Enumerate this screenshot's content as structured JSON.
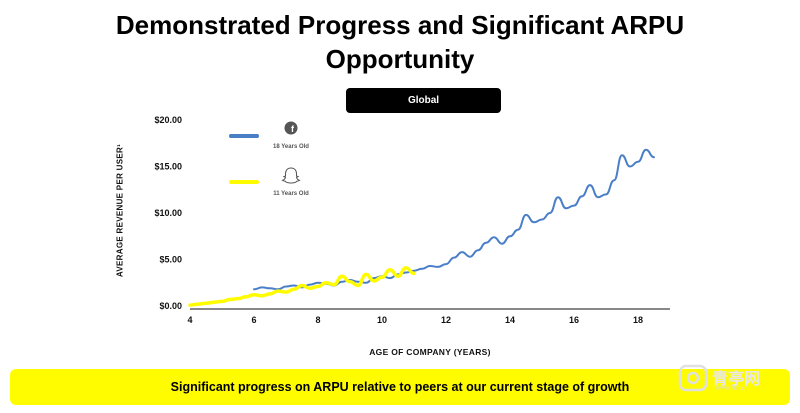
{
  "page": {
    "title_line1": "Demonstrated Progress and Significant ARPU",
    "title_line2": "Opportunity",
    "region_pill": "Global",
    "banner_text": "Significant progress on ARPU relative to peers at our current stage of growth",
    "watermark_main": "青亭网",
    "watermark_sub": "www.7tin.cn"
  },
  "chart_data": {
    "type": "line",
    "title": "",
    "xlabel": "AGE OF COMPANY (YEARS)",
    "ylabel": "AVERAGE REVENUE PER USER¹",
    "xlim": [
      4,
      19
    ],
    "ylim": [
      0,
      20
    ],
    "x_ticks": [
      4,
      6,
      8,
      10,
      12,
      14,
      16,
      18
    ],
    "x_tick_labels": [
      "4",
      "6",
      "8",
      "10",
      "12",
      "14",
      "16",
      "18"
    ],
    "y_ticks": [
      0,
      5,
      10,
      15,
      20
    ],
    "y_tick_labels": [
      "$0.00",
      "$5.00",
      "$10.00",
      "$15.00",
      "$20.00"
    ],
    "grid": false,
    "legend_position": "top-left",
    "series": [
      {
        "name": "18 Years Old",
        "icon": "facebook-icon",
        "color": "#4a7fc8",
        "x": [
          6.0,
          6.25,
          6.5,
          6.75,
          7.0,
          7.25,
          7.5,
          7.75,
          8.0,
          8.25,
          8.5,
          8.75,
          9.0,
          9.25,
          9.5,
          9.75,
          10.0,
          10.25,
          10.5,
          10.75,
          11.0,
          11.25,
          11.5,
          11.75,
          12.0,
          12.25,
          12.5,
          12.75,
          13.0,
          13.25,
          13.5,
          13.75,
          14.0,
          14.25,
          14.5,
          14.75,
          15.0,
          15.25,
          15.5,
          15.75,
          16.0,
          16.25,
          16.5,
          16.75,
          17.0,
          17.25,
          17.5,
          17.75,
          18.0,
          18.25,
          18.5
        ],
        "values": [
          1.8,
          2.0,
          1.9,
          1.8,
          2.1,
          2.2,
          2.0,
          2.3,
          2.5,
          2.4,
          2.2,
          2.6,
          2.8,
          2.6,
          2.5,
          3.0,
          3.2,
          3.0,
          3.4,
          3.6,
          3.8,
          4.0,
          4.3,
          4.2,
          4.5,
          5.2,
          5.8,
          5.3,
          6.0,
          6.8,
          7.4,
          6.7,
          7.5,
          8.2,
          9.8,
          9.0,
          9.3,
          10.0,
          11.7,
          10.5,
          10.8,
          11.8,
          13.0,
          11.7,
          12.0,
          13.5,
          16.2,
          15.0,
          15.5,
          16.8,
          16.0
        ]
      },
      {
        "name": "11 Years Old",
        "icon": "snapchat-icon",
        "color": "#fffc00",
        "x": [
          4.0,
          4.25,
          4.5,
          4.75,
          5.0,
          5.25,
          5.5,
          5.75,
          6.0,
          6.25,
          6.5,
          6.75,
          7.0,
          7.25,
          7.5,
          7.75,
          8.0,
          8.25,
          8.5,
          8.75,
          9.0,
          9.25,
          9.5,
          9.75,
          10.0,
          10.25,
          10.5,
          10.75,
          11.0
        ],
        "values": [
          0.1,
          0.2,
          0.3,
          0.4,
          0.5,
          0.7,
          0.8,
          1.0,
          1.2,
          1.1,
          1.3,
          1.6,
          1.5,
          1.8,
          2.2,
          1.9,
          2.1,
          2.5,
          2.3,
          3.2,
          2.6,
          2.2,
          3.4,
          2.7,
          3.1,
          3.9,
          3.2,
          4.1,
          3.5
        ]
      }
    ]
  }
}
